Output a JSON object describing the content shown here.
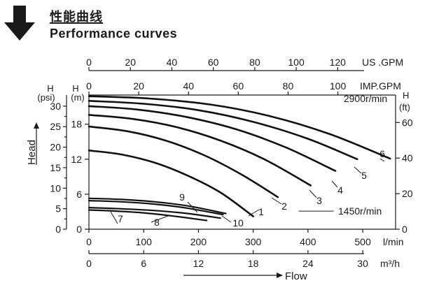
{
  "header": {
    "title_cn": "性能曲线",
    "title_en": "Performance curves",
    "arrow_icon": "down-arrow-icon"
  },
  "chart_data": {
    "type": "line",
    "x_axes": {
      "us_gpm": {
        "label": "US .GPM",
        "ticks": [
          0,
          20,
          40,
          60,
          80,
          100,
          120
        ]
      },
      "imp_gpm": {
        "label": "IMP.GPM",
        "ticks": [
          0,
          20,
          40,
          60,
          80,
          100
        ]
      },
      "lpm": {
        "label": "l/min",
        "ticks": [
          0,
          100,
          200,
          300,
          400,
          500
        ]
      },
      "m3h": {
        "label": "m³/h",
        "ticks": [
          0,
          6,
          12,
          18,
          24,
          30
        ]
      }
    },
    "y_axes": {
      "psi": {
        "label_top": "H",
        "label_unit": "(psi)",
        "ticks": [
          0,
          5,
          10,
          15,
          20,
          25,
          30
        ]
      },
      "m": {
        "label_top": "H",
        "label_unit": "(m)",
        "ticks": [
          0,
          6,
          12,
          18
        ]
      },
      "ft": {
        "label_top": "H",
        "label_unit": "(ft)",
        "ticks": [
          0,
          20,
          40,
          60
        ]
      }
    },
    "xlabel": "Flow",
    "ylabel": "Head",
    "xlim_lpm": [
      0,
      560
    ],
    "ylim_m": [
      0,
      23
    ],
    "speed_labels": [
      {
        "text": "2900r/min",
        "x_lpm": 505,
        "y_m": 21.8
      },
      {
        "text": "1450r/min",
        "x_lpm": 495,
        "y_m": 2.5
      }
    ],
    "series": [
      {
        "name": "1",
        "speed": "2900r/min",
        "x": [
          0,
          60,
          120,
          180,
          240,
          300
        ],
        "y": [
          13.5,
          12.8,
          11.4,
          9.2,
          6.3,
          2.2
        ]
      },
      {
        "name": "2",
        "speed": "2900r/min",
        "x": [
          0,
          70,
          140,
          210,
          280,
          345
        ],
        "y": [
          17.6,
          16.8,
          15.2,
          12.7,
          9.3,
          5.5
        ]
      },
      {
        "name": "3",
        "speed": "2900r/min",
        "x": [
          0,
          80,
          160,
          240,
          320,
          405
        ],
        "y": [
          19.6,
          18.9,
          17.5,
          15.2,
          12.0,
          7.5
        ]
      },
      {
        "name": "4",
        "speed": "2900r/min",
        "x": [
          0,
          90,
          180,
          270,
          360,
          450
        ],
        "y": [
          21.1,
          20.5,
          19.2,
          17.1,
          14.0,
          10.0
        ]
      },
      {
        "name": "5",
        "speed": "2900r/min",
        "x": [
          0,
          100,
          200,
          300,
          400,
          490
        ],
        "y": [
          22.0,
          21.5,
          20.4,
          18.4,
          15.5,
          12.0
        ]
      },
      {
        "name": "6",
        "speed": "2900r/min",
        "x": [
          0,
          110,
          220,
          330,
          440,
          550
        ],
        "y": [
          22.8,
          22.4,
          21.4,
          19.4,
          16.3,
          12.1
        ]
      },
      {
        "name": "7",
        "speed": "1450r/min",
        "x": [
          0,
          50,
          100,
          150,
          215
        ],
        "y": [
          3.3,
          3.1,
          2.8,
          2.3,
          1.5
        ]
      },
      {
        "name": "8",
        "speed": "1450r/min",
        "x": [
          0,
          60,
          120,
          180,
          240
        ],
        "y": [
          3.7,
          3.5,
          3.2,
          2.7,
          1.9
        ]
      },
      {
        "name": "9",
        "speed": "1450r/min",
        "x": [
          0,
          60,
          120,
          180,
          245
        ],
        "y": [
          4.9,
          4.7,
          4.3,
          3.6,
          2.5
        ]
      },
      {
        "name": "10",
        "speed": "1450r/min",
        "x": [
          0,
          60,
          120,
          180,
          250
        ],
        "y": [
          5.3,
          5.1,
          4.7,
          4.0,
          2.7
        ]
      }
    ],
    "grid": false
  }
}
